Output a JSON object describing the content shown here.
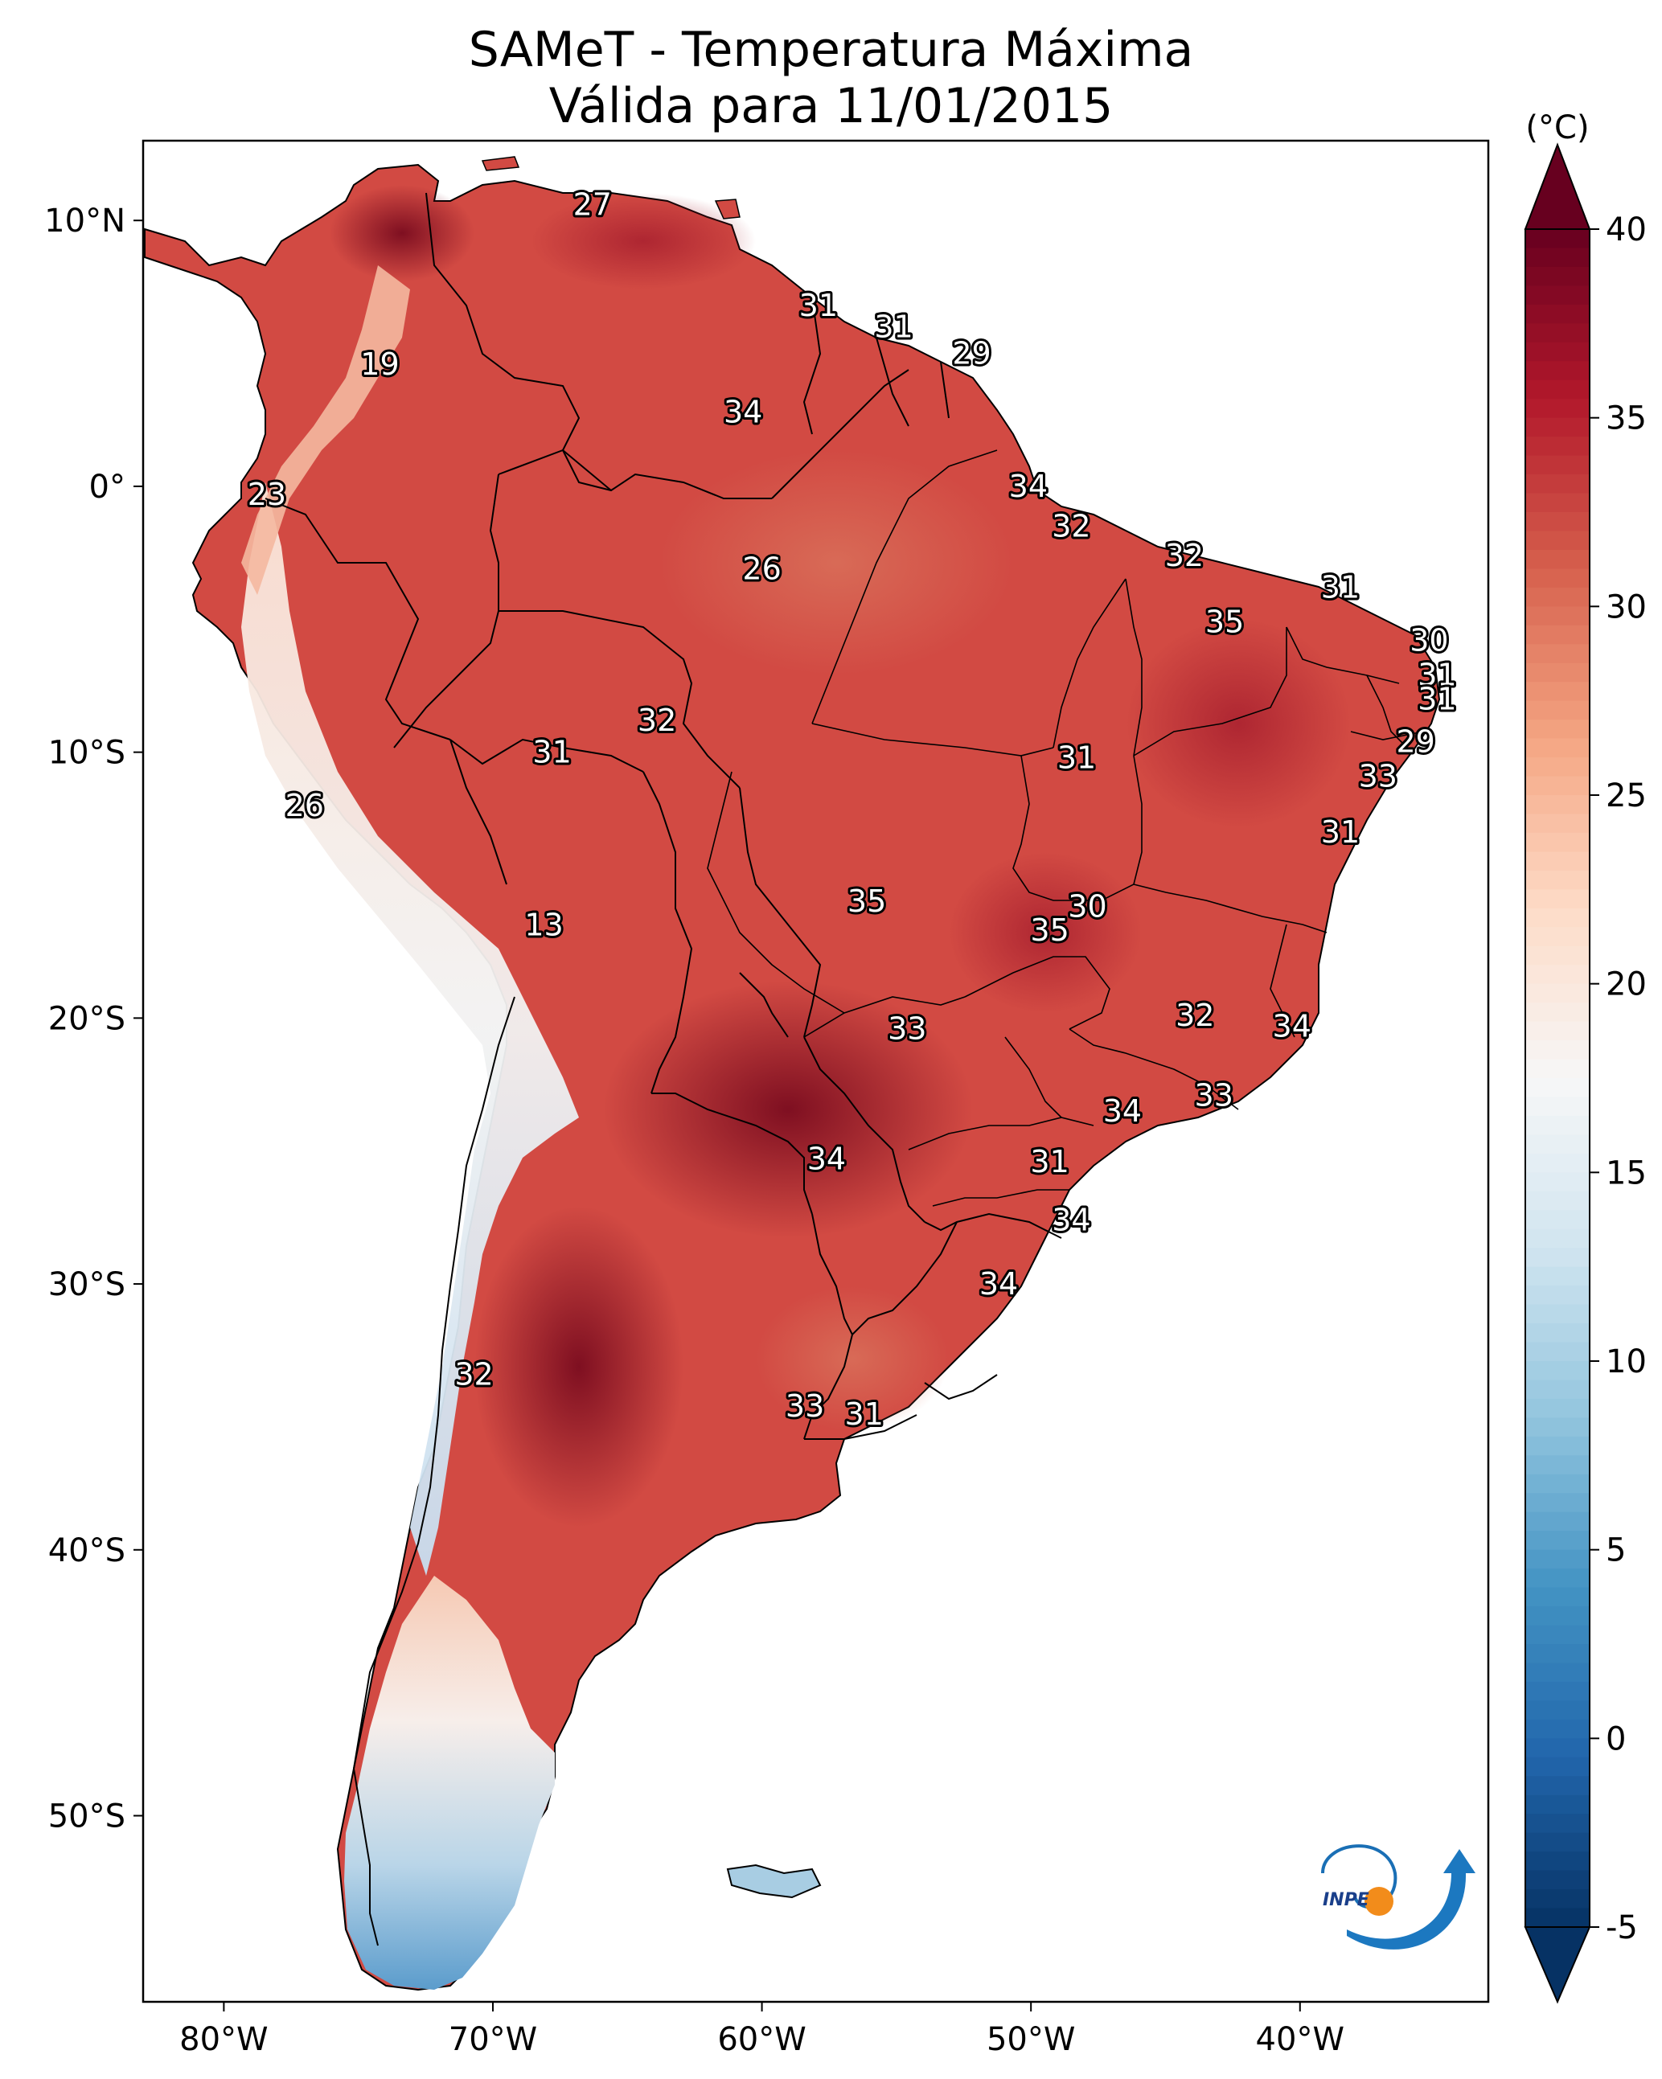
{
  "title": {
    "line1": "SAMeT - Temperatura Máxima",
    "line2": "Válida para 11/01/2015"
  },
  "chart_data": {
    "type": "heatmap",
    "description_type": "gridded temperature map of South America",
    "variable": "Temperatura Máxima",
    "units_label": "(°C)",
    "colorbar": {
      "range": [
        -5,
        40
      ],
      "ticks": [
        "40",
        "35",
        "30",
        "25",
        "20",
        "15",
        "10",
        "5",
        "0",
        "-5"
      ],
      "palette": [
        "#063264",
        "#2166ac",
        "#4393c3",
        "#92c5de",
        "#d1e5f0",
        "#f7f7f7",
        "#fddbc7",
        "#f4a582",
        "#d6604d",
        "#b2182b",
        "#67001f"
      ]
    },
    "x_axis": {
      "range": [
        -83,
        -33
      ],
      "ticks": [
        {
          "value": -80,
          "label": "80°W"
        },
        {
          "value": -70,
          "label": "70°W"
        },
        {
          "value": -60,
          "label": "60°W"
        },
        {
          "value": -50,
          "label": "50°W"
        },
        {
          "value": -40,
          "label": "40°W"
        }
      ]
    },
    "y_axis": {
      "range": [
        -57,
        13
      ],
      "ticks": [
        {
          "value": 10,
          "label": "10°N"
        },
        {
          "value": 0,
          "label": "0°"
        },
        {
          "value": -10,
          "label": "10°S"
        },
        {
          "value": -20,
          "label": "20°S"
        },
        {
          "value": -30,
          "label": "30°S"
        },
        {
          "value": -40,
          "label": "40°S"
        },
        {
          "value": -50,
          "label": "50°S"
        }
      ]
    },
    "stations": [
      {
        "lon": -66.3,
        "lat": 10.6,
        "value": "27"
      },
      {
        "lon": -57.9,
        "lat": 6.8,
        "value": "31"
      },
      {
        "lon": -55.1,
        "lat": 6.0,
        "value": "31"
      },
      {
        "lon": -52.2,
        "lat": 5.0,
        "value": "29"
      },
      {
        "lon": -74.2,
        "lat": 4.6,
        "value": "19"
      },
      {
        "lon": -60.7,
        "lat": 2.8,
        "value": "34"
      },
      {
        "lon": -50.1,
        "lat": 0.0,
        "value": "34"
      },
      {
        "lon": -78.4,
        "lat": -0.3,
        "value": "23"
      },
      {
        "lon": -48.5,
        "lat": -1.5,
        "value": "32"
      },
      {
        "lon": -44.3,
        "lat": -2.6,
        "value": "32"
      },
      {
        "lon": -60.0,
        "lat": -3.1,
        "value": "26"
      },
      {
        "lon": -38.5,
        "lat": -3.8,
        "value": "31"
      },
      {
        "lon": -42.8,
        "lat": -5.1,
        "value": "35"
      },
      {
        "lon": -35.2,
        "lat": -5.8,
        "value": "30"
      },
      {
        "lon": -34.9,
        "lat": -7.1,
        "value": "31"
      },
      {
        "lon": -34.9,
        "lat": -8.0,
        "value": "31"
      },
      {
        "lon": -63.9,
        "lat": -8.8,
        "value": "32"
      },
      {
        "lon": -35.7,
        "lat": -9.6,
        "value": "29"
      },
      {
        "lon": -67.8,
        "lat": -10.0,
        "value": "31"
      },
      {
        "lon": -48.3,
        "lat": -10.2,
        "value": "31"
      },
      {
        "lon": -37.1,
        "lat": -10.9,
        "value": "33"
      },
      {
        "lon": -77.0,
        "lat": -12.0,
        "value": "26"
      },
      {
        "lon": -38.5,
        "lat": -13.0,
        "value": "31"
      },
      {
        "lon": -56.1,
        "lat": -15.6,
        "value": "35"
      },
      {
        "lon": -47.9,
        "lat": -15.8,
        "value": "30"
      },
      {
        "lon": -49.3,
        "lat": -16.7,
        "value": "35"
      },
      {
        "lon": -68.1,
        "lat": -16.5,
        "value": "13"
      },
      {
        "lon": -43.9,
        "lat": -19.9,
        "value": "32"
      },
      {
        "lon": -40.3,
        "lat": -20.3,
        "value": "34"
      },
      {
        "lon": -54.6,
        "lat": -20.4,
        "value": "33"
      },
      {
        "lon": -43.2,
        "lat": -22.9,
        "value": "33"
      },
      {
        "lon": -46.6,
        "lat": -23.5,
        "value": "34"
      },
      {
        "lon": -57.6,
        "lat": -25.3,
        "value": "34"
      },
      {
        "lon": -49.3,
        "lat": -25.4,
        "value": "31"
      },
      {
        "lon": -48.5,
        "lat": -27.6,
        "value": "34"
      },
      {
        "lon": -51.2,
        "lat": -30.0,
        "value": "34"
      },
      {
        "lon": -70.7,
        "lat": -33.4,
        "value": "32"
      },
      {
        "lon": -58.4,
        "lat": -34.6,
        "value": "33"
      },
      {
        "lon": -56.2,
        "lat": -34.9,
        "value": "31"
      }
    ]
  },
  "logo": {
    "text": "INPE"
  }
}
